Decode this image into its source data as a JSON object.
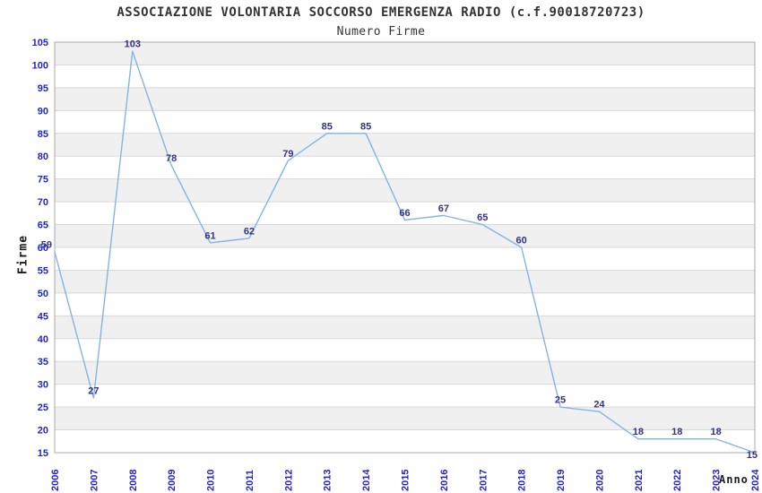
{
  "chart_data": {
    "type": "line",
    "title": "ASSOCIAZIONE VOLONTARIA SOCCORSO EMERGENZA RADIO (c.f.90018720723)",
    "subtitle": "Numero Firme",
    "xlabel": "Anno",
    "ylabel": "Firme",
    "categories": [
      "2006",
      "2007",
      "2008",
      "2009",
      "2010",
      "2011",
      "2012",
      "2013",
      "2014",
      "2015",
      "2016",
      "2017",
      "2018",
      "2019",
      "2020",
      "2021",
      "2022",
      "2023",
      "2024"
    ],
    "values": [
      59,
      27,
      103,
      78,
      61,
      62,
      79,
      85,
      85,
      66,
      67,
      65,
      60,
      25,
      24,
      18,
      18,
      18,
      15
    ],
    "point_labels": [
      "59",
      "27",
      "103",
      "78",
      "61",
      "62",
      "79",
      "85",
      "85",
      "66",
      "67",
      "65",
      "60",
      "25",
      "24",
      "18",
      "18",
      "18",
      "15"
    ],
    "ylim": [
      15,
      105
    ],
    "ytick_step": 5,
    "yticks": [
      15,
      20,
      25,
      30,
      35,
      40,
      45,
      50,
      55,
      60,
      65,
      70,
      75,
      80,
      85,
      90,
      95,
      100,
      105
    ],
    "grid": "horizontal-alternating-bands",
    "legend": "none",
    "colors": {
      "line": "#82B4E6",
      "point_label": "#333388",
      "tick_label": "#2222CC",
      "band_gray": "#F0F0F0",
      "band_white": "#FFFFFF",
      "gridline": "#D8D8D8",
      "axis_border": "#A8A8A8",
      "title_text": "#333333",
      "background": "#FFFFFF"
    }
  }
}
